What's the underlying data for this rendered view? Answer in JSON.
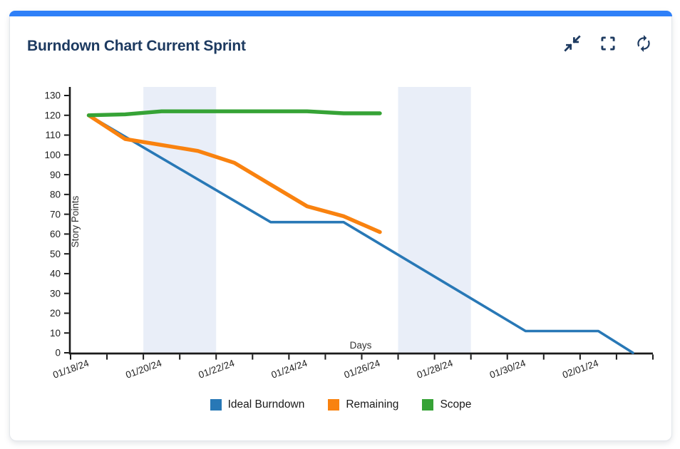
{
  "card": {
    "title": "Burndown Chart Current Sprint",
    "accent_color": "#2f80f8",
    "title_color": "#1d3a60",
    "icon_color": "#1d3a60",
    "toolbar": {
      "collapse_icon": "collapse-icon",
      "fullscreen_icon": "fullscreen-icon",
      "refresh_icon": "refresh-icon"
    }
  },
  "chart_data": {
    "type": "line",
    "title": "Burndown Chart Current Sprint",
    "xlabel": "Days",
    "ylabel": "Story Points",
    "x_axis_start_label": "01/18/24",
    "x_axis_days": 16,
    "x_tick_days": [
      0,
      2,
      4,
      6,
      8,
      10,
      12,
      14
    ],
    "x_tick_labels": [
      "01/18/24",
      "01/20/24",
      "01/22/24",
      "01/24/24",
      "01/26/24",
      "01/28/24",
      "01/30/24",
      "02/01/24"
    ],
    "y_ticks": [
      0,
      10,
      20,
      30,
      40,
      50,
      60,
      70,
      80,
      90,
      100,
      110,
      120,
      130
    ],
    "ylim": [
      0,
      134
    ],
    "grid": false,
    "legend_position": "bottom-center",
    "weekend_bands": [
      {
        "start_day": 2,
        "end_day": 4
      },
      {
        "start_day": 9,
        "end_day": 11
      }
    ],
    "colors": {
      "weekend_band": "#e9eef8",
      "axis": "#1a1a1a",
      "tick_text": "#1f1f1f",
      "axis_title_text": "#333333"
    },
    "series": [
      {
        "name": "Ideal Burndown",
        "color": "#2878b6",
        "width": 3.6,
        "points": [
          [
            0.5,
            120
          ],
          [
            5.5,
            66
          ],
          [
            7.5,
            66
          ],
          [
            12.5,
            11
          ],
          [
            14.5,
            11
          ],
          [
            15.45,
            0
          ]
        ]
      },
      {
        "name": "Remaining",
        "color": "#f9820f",
        "width": 5.4,
        "points": [
          [
            0.5,
            120
          ],
          [
            1.5,
            108
          ],
          [
            2.5,
            105
          ],
          [
            3.5,
            102
          ],
          [
            4.5,
            96
          ],
          [
            5.5,
            85
          ],
          [
            6.5,
            74
          ],
          [
            7.5,
            69
          ],
          [
            8.5,
            61
          ]
        ]
      },
      {
        "name": "Scope",
        "color": "#36a336",
        "width": 5.4,
        "points": [
          [
            0.5,
            120
          ],
          [
            1.5,
            120.5
          ],
          [
            2.5,
            122
          ],
          [
            3.5,
            122
          ],
          [
            4.5,
            122
          ],
          [
            5.5,
            122
          ],
          [
            6.5,
            122
          ],
          [
            7.5,
            121
          ],
          [
            8.5,
            121
          ]
        ]
      }
    ]
  }
}
